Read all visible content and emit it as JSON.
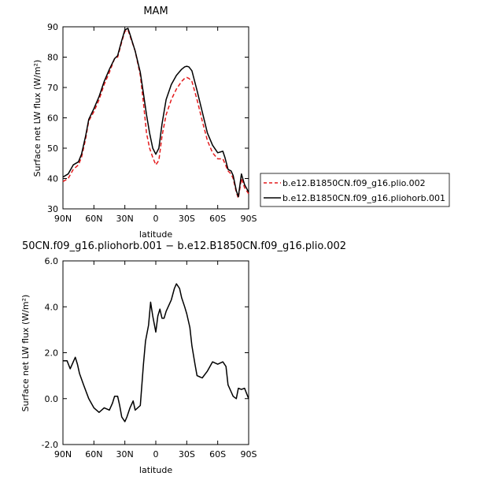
{
  "chart_data": [
    {
      "type": "line",
      "title": "MAM",
      "xlabel": "latitude",
      "ylabel": "Surface net LW flux (W/m²)",
      "xlim": [
        90,
        -90
      ],
      "ylim": [
        30,
        90
      ],
      "xticks": [
        90,
        60,
        30,
        0,
        -30,
        -60,
        -90
      ],
      "xtick_labels": [
        "90N",
        "60N",
        "30N",
        "0",
        "30S",
        "60S",
        "90S"
      ],
      "yticks": [
        30,
        40,
        50,
        60,
        70,
        80,
        90
      ],
      "ytick_labels": [
        "30",
        "40",
        "50",
        "60",
        "70",
        "80",
        "90"
      ],
      "legend_position": "outside-right",
      "series": [
        {
          "name": "b.e12.B1850CN.f09_g16.plio.002",
          "color": "#e41a1c",
          "dash": "dashed",
          "x": [
            90,
            85,
            80,
            75,
            72,
            68,
            65,
            60,
            55,
            50,
            45,
            40,
            37,
            33,
            30,
            27,
            25,
            20,
            15,
            12,
            9,
            6,
            3,
            0,
            -3,
            -6,
            -10,
            -15,
            -20,
            -25,
            -28,
            -30,
            -32,
            -35,
            -40,
            -45,
            -50,
            -55,
            -60,
            -65,
            -67,
            -70,
            -73,
            -75,
            -78,
            -80,
            -83,
            -86,
            -90
          ],
          "values": [
            39,
            40,
            43,
            44.5,
            47,
            53,
            59,
            62,
            66,
            71,
            75,
            79.5,
            80,
            85,
            88.5,
            89,
            87,
            82,
            74,
            65,
            55,
            50,
            47,
            44.5,
            46,
            54,
            61,
            66,
            69.5,
            72,
            73,
            73.3,
            73,
            72,
            66,
            59,
            52.5,
            48.5,
            46.5,
            46.5,
            45,
            42.5,
            41.5,
            40,
            35.5,
            33.5,
            40,
            37,
            35
          ]
        },
        {
          "name": "b.e12.B1850CN.f09_g16.pliohorb.001",
          "color": "#000000",
          "dash": "solid",
          "x": [
            90,
            85,
            80,
            75,
            72,
            68,
            65,
            60,
            55,
            50,
            45,
            40,
            37,
            33,
            30,
            27,
            25,
            20,
            15,
            12,
            9,
            6,
            3,
            0,
            -3,
            -6,
            -10,
            -15,
            -20,
            -25,
            -28,
            -30,
            -32,
            -35,
            -40,
            -45,
            -50,
            -55,
            -60,
            -65,
            -67,
            -70,
            -73,
            -75,
            -78,
            -80,
            -83,
            -86,
            -90
          ],
          "values": [
            40.5,
            41.5,
            44.5,
            45.5,
            48,
            54,
            59.5,
            63,
            67,
            72,
            76,
            79.5,
            80.5,
            85.5,
            89,
            89.5,
            87.5,
            82,
            75,
            68,
            61,
            55,
            50,
            48,
            50,
            58,
            66,
            71,
            74,
            76,
            76.8,
            77,
            76.8,
            75.5,
            69,
            62,
            55,
            51,
            48.5,
            49,
            47,
            43,
            42.5,
            41,
            36,
            34,
            41.5,
            38,
            35.5
          ]
        }
      ]
    },
    {
      "type": "line",
      "title": "50CN.f09_g16.pliohorb.001 − b.e12.B1850CN.f09_g16.plio.002",
      "xlabel": "latitude",
      "ylabel": "Surface net LW flux (W/m²)",
      "xlim": [
        90,
        -90
      ],
      "ylim": [
        -2,
        6
      ],
      "xticks": [
        90,
        60,
        30,
        0,
        -30,
        -60,
        -90
      ],
      "xtick_labels": [
        "90N",
        "60N",
        "30N",
        "0",
        "30S",
        "60S",
        "90S"
      ],
      "yticks": [
        -2,
        0,
        2,
        4,
        6
      ],
      "ytick_labels": [
        "-2.0",
        "0.0",
        "2.0",
        "4.0",
        "6.0"
      ],
      "series": [
        {
          "color": "#000000",
          "dash": "solid",
          "x": [
            90,
            86,
            83,
            80,
            78,
            76,
            74,
            70,
            65,
            60,
            55,
            50,
            45,
            42,
            40,
            37,
            35,
            33,
            30,
            28,
            25,
            22,
            20,
            15,
            12,
            10,
            7,
            5,
            3,
            0,
            -2,
            -4,
            -6,
            -8,
            -10,
            -12,
            -15,
            -18,
            -20,
            -23,
            -25,
            -28,
            -30,
            -33,
            -35,
            -38,
            -40,
            -45,
            -50,
            -55,
            -60,
            -65,
            -68,
            -70,
            -73,
            -75,
            -78,
            -80,
            -83,
            -86,
            -90
          ],
          "values": [
            1.65,
            1.65,
            1.3,
            1.6,
            1.8,
            1.5,
            1.1,
            0.6,
            0.0,
            -0.4,
            -0.6,
            -0.4,
            -0.5,
            -0.2,
            0.1,
            0.1,
            -0.3,
            -0.8,
            -1.0,
            -0.8,
            -0.4,
            -0.1,
            -0.5,
            -0.3,
            1.5,
            2.5,
            3.2,
            4.2,
            3.6,
            2.9,
            3.6,
            3.9,
            3.5,
            3.5,
            3.8,
            4.0,
            4.3,
            4.8,
            5.0,
            4.8,
            4.4,
            4.0,
            3.7,
            3.1,
            2.3,
            1.5,
            1.0,
            0.9,
            1.2,
            1.6,
            1.5,
            1.6,
            1.4,
            0.6,
            0.3,
            0.1,
            0.0,
            0.45,
            0.4,
            0.45,
            0.0
          ]
        }
      ]
    }
  ]
}
